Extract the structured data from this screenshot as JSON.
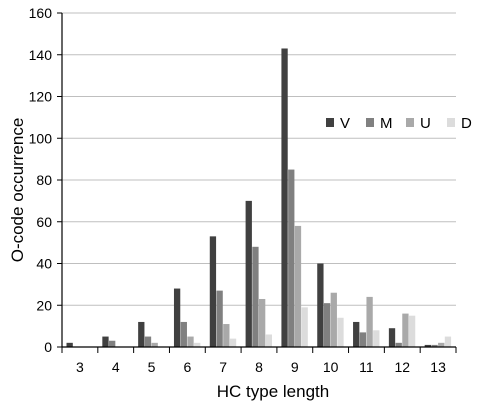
{
  "chart_data": {
    "type": "bar",
    "title": "",
    "xlabel": "HC type length",
    "ylabel": "O-code occurrence",
    "categories": [
      "3",
      "4",
      "5",
      "6",
      "7",
      "8",
      "9",
      "10",
      "11",
      "12",
      "13"
    ],
    "series": [
      {
        "name": "V",
        "color": "#404040",
        "values": [
          2,
          5,
          12,
          28,
          53,
          70,
          143,
          40,
          12,
          9,
          1
        ]
      },
      {
        "name": "M",
        "color": "#808080",
        "values": [
          0,
          3,
          5,
          12,
          27,
          48,
          85,
          21,
          7,
          2,
          1
        ]
      },
      {
        "name": "U",
        "color": "#a9a9a9",
        "values": [
          0,
          0,
          2,
          5,
          11,
          23,
          58,
          26,
          24,
          16,
          2
        ]
      },
      {
        "name": "D",
        "color": "#dcdcdc",
        "values": [
          0,
          0,
          0,
          2,
          4,
          6,
          19,
          14,
          8,
          15,
          5
        ]
      }
    ],
    "ylim": [
      0,
      160
    ],
    "yticks": [
      0,
      20,
      40,
      60,
      80,
      100,
      120,
      140,
      160
    ],
    "grid": true,
    "legend_position": "right"
  }
}
